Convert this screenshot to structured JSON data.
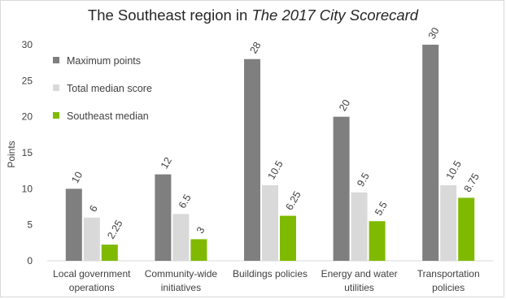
{
  "chart_data": {
    "type": "bar",
    "title": "The Southeast region in ",
    "title_italic": "The 2017 City Scorecard",
    "ylabel": "Points",
    "xlabel": "",
    "ylim": [
      0,
      30
    ],
    "yticks": [
      0,
      5,
      10,
      15,
      20,
      25,
      30
    ],
    "grid": false,
    "legend_position": "top-left",
    "categories": [
      [
        "Local government",
        "operations"
      ],
      [
        "Community-wide",
        "initiatives"
      ],
      [
        "Buildings policies"
      ],
      [
        "Energy and water",
        "utilities"
      ],
      [
        "Transportation",
        "policies"
      ]
    ],
    "series": [
      {
        "name": "Maximum points",
        "color": "#7f7f7f",
        "values": [
          10,
          12,
          28,
          20,
          30
        ],
        "labels": [
          "10",
          "12",
          "28",
          "20",
          "30"
        ]
      },
      {
        "name": "Total median score",
        "color": "#d9d9d9",
        "values": [
          6,
          6.5,
          10.5,
          9.5,
          10.5
        ],
        "labels": [
          "6",
          "6.5",
          "10.5",
          "9.5",
          "10.5"
        ]
      },
      {
        "name": "Southeast median",
        "color": "#7fba00",
        "values": [
          2.25,
          3,
          6.25,
          5.5,
          8.75
        ],
        "labels": [
          "2.25",
          "3",
          "6.25",
          "5.5",
          "8.75"
        ]
      }
    ]
  }
}
